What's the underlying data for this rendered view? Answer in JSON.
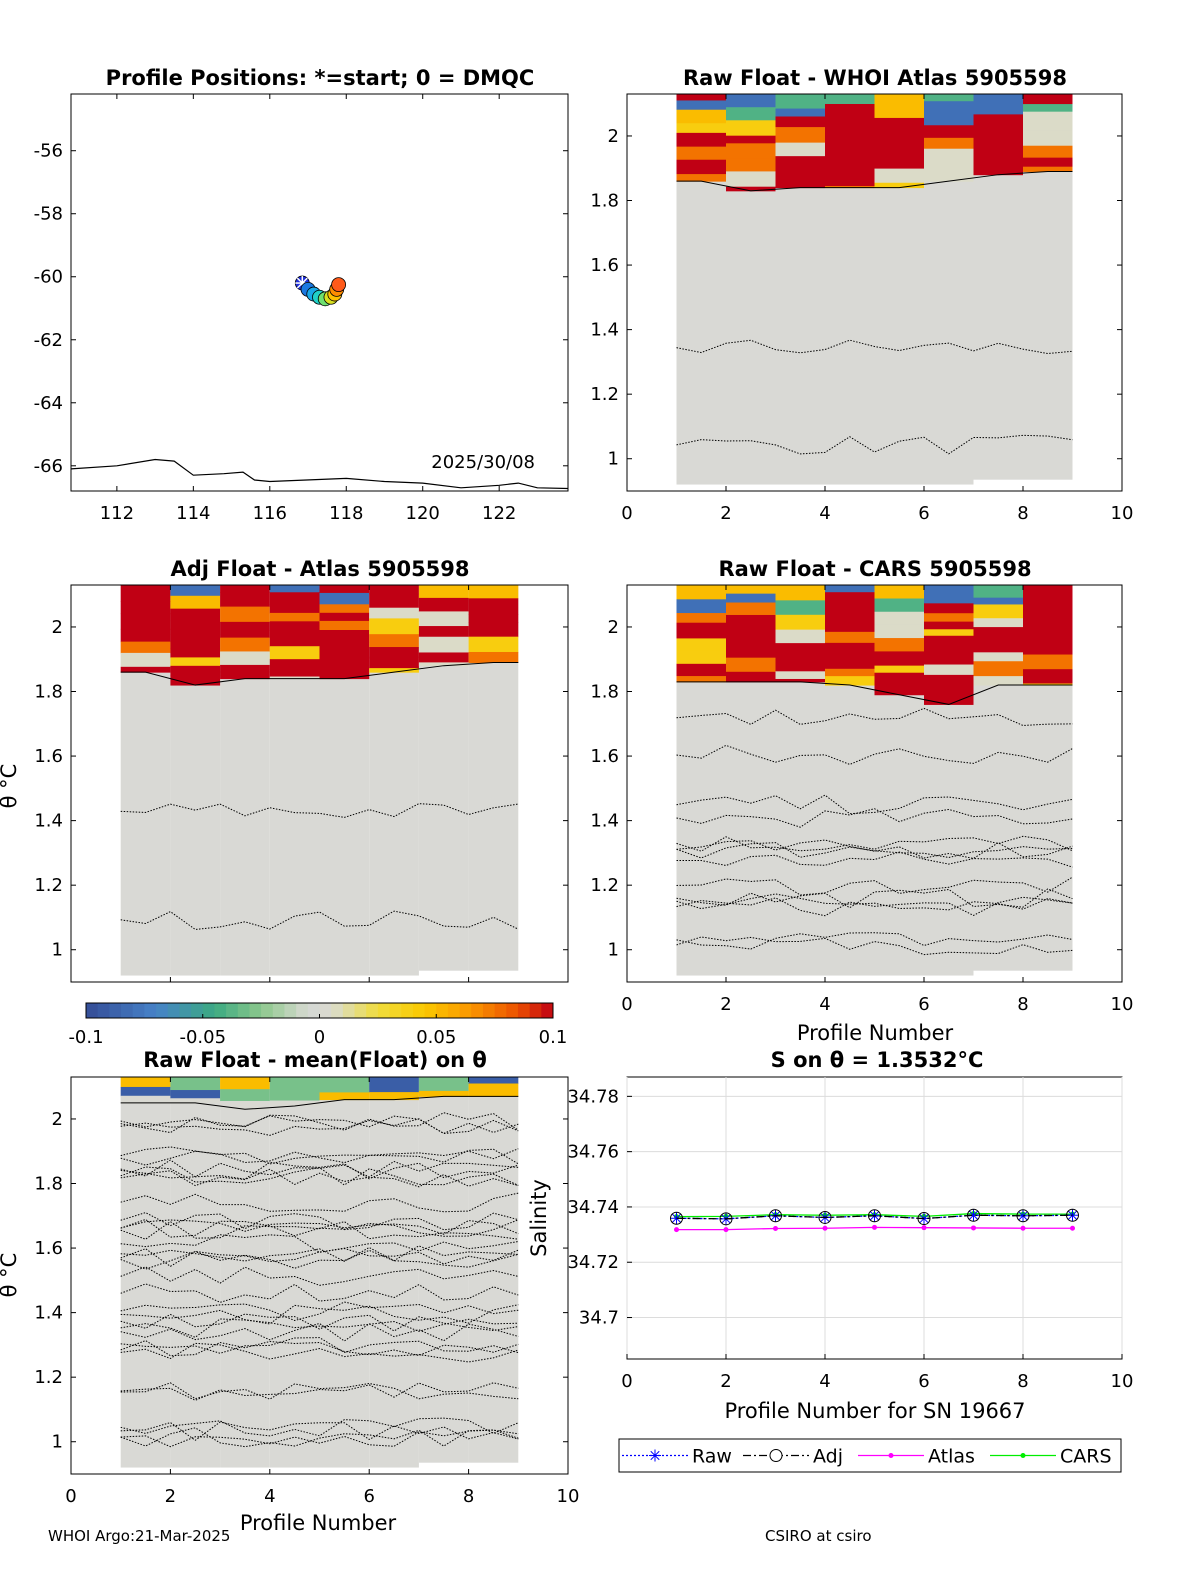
{
  "footer": {
    "left": "WHOI Argo:21-Mar-2025",
    "right": "CSIRO at csiro"
  },
  "colorbar": {
    "min": -0.1,
    "max": 0.1,
    "ticks": [
      "-0.1",
      "-0.05",
      "0",
      "0.05",
      "0.1"
    ]
  },
  "chart_data": [
    {
      "id": "positions",
      "type": "scatter",
      "title": "Profile Positions: *=start; 0 = DMQC",
      "annotation": "2025/30/08",
      "xlim": [
        110.8,
        123.8
      ],
      "ylim": [
        -66.8,
        -54.2
      ],
      "xticks": [
        "112",
        "114",
        "116",
        "118",
        "120",
        "122"
      ],
      "yticks": [
        "-56",
        "-58",
        "-60",
        "-62",
        "-64",
        "-66"
      ],
      "points": [
        {
          "lon": 116.85,
          "lat": -60.2,
          "color": "#1f2fd8",
          "marker": "star"
        },
        {
          "lon": 117.0,
          "lat": -60.4,
          "color": "#1a78e0"
        },
        {
          "lon": 117.15,
          "lat": -60.55,
          "color": "#18a8e8"
        },
        {
          "lon": 117.3,
          "lat": -60.65,
          "color": "#20d0c8"
        },
        {
          "lon": 117.45,
          "lat": -60.7,
          "color": "#6fe070"
        },
        {
          "lon": 117.6,
          "lat": -60.65,
          "color": "#d8e020"
        },
        {
          "lon": 117.7,
          "lat": -60.55,
          "color": "#ffc000"
        },
        {
          "lon": 117.75,
          "lat": -60.4,
          "color": "#ff8c00"
        },
        {
          "lon": 117.8,
          "lat": -60.25,
          "color": "#ff5a1a"
        }
      ],
      "coastline": [
        [
          110.8,
          -66.1
        ],
        [
          112,
          -66
        ],
        [
          113,
          -65.8
        ],
        [
          113.5,
          -65.85
        ],
        [
          114,
          -66.3
        ],
        [
          114.8,
          -66.25
        ],
        [
          115.3,
          -66.2
        ],
        [
          115.6,
          -66.45
        ],
        [
          116,
          -66.5
        ],
        [
          118,
          -66.4
        ],
        [
          119,
          -66.5
        ],
        [
          120,
          -66.55
        ],
        [
          121,
          -66.7
        ],
        [
          122,
          -66.62
        ],
        [
          122.5,
          -66.55
        ],
        [
          123,
          -66.7
        ],
        [
          123.8,
          -66.72
        ]
      ]
    },
    {
      "id": "raw-atlas",
      "type": "heatmap",
      "title": "Raw Float - WHOI Atlas  5905598",
      "xlim": [
        0,
        10
      ],
      "ylim": [
        0.9,
        2.13
      ],
      "xticks": [
        "0",
        "2",
        "4",
        "6",
        "8",
        "10"
      ],
      "yticks": [
        "1",
        "1.2",
        "1.4",
        "1.6",
        "1.8",
        "2"
      ],
      "xlabel": "",
      "ylabel": ""
    },
    {
      "id": "adj-atlas",
      "type": "heatmap",
      "title": "Adj Float - Atlas  5905598",
      "xlim": [
        0,
        10
      ],
      "ylim": [
        0.9,
        2.13
      ],
      "yticks": [
        "1",
        "1.2",
        "1.4",
        "1.6",
        "1.8",
        "2"
      ],
      "xlabel": "",
      "ylabel": "θ °C"
    },
    {
      "id": "raw-cars",
      "type": "heatmap",
      "title": "Raw Float - CARS  5905598",
      "xlim": [
        0,
        10
      ],
      "ylim": [
        0.9,
        2.13
      ],
      "xticks": [
        "0",
        "2",
        "4",
        "6",
        "8",
        "10"
      ],
      "yticks": [
        "1",
        "1.2",
        "1.4",
        "1.6",
        "1.8",
        "2"
      ],
      "xlabel": "Profile Number",
      "ylabel": ""
    },
    {
      "id": "raw-mean",
      "type": "heatmap",
      "title": "Raw Float - mean(Float) on θ",
      "xlim": [
        0,
        10
      ],
      "ylim": [
        0.9,
        2.13
      ],
      "xticks": [
        "0",
        "2",
        "4",
        "6",
        "8",
        "10"
      ],
      "yticks": [
        "1",
        "1.2",
        "1.4",
        "1.6",
        "1.8",
        "2"
      ],
      "xlabel": "Profile Number",
      "ylabel": "θ °C"
    },
    {
      "id": "salinity",
      "type": "line",
      "title": "S on θ = 1.3532°C",
      "xlim": [
        0,
        10
      ],
      "ylim": [
        34.685,
        34.787
      ],
      "xticks": [
        "0",
        "2",
        "4",
        "6",
        "8",
        "10"
      ],
      "yticks": [
        "34.7",
        "34.72",
        "34.74",
        "34.76",
        "34.78"
      ],
      "xlabel": "Profile Number for SN 19667",
      "ylabel": "Salinity",
      "grid": true,
      "legend": "below",
      "x": [
        1,
        2,
        3,
        4,
        5,
        6,
        7,
        8,
        9
      ],
      "series": [
        {
          "name": "Raw",
          "color": "#0000ff",
          "values": [
            34.7359,
            34.7357,
            34.7368,
            34.7362,
            34.7368,
            34.7358,
            34.737,
            34.7368,
            34.737
          ]
        },
        {
          "name": "Adj",
          "color": "#000000",
          "values": [
            34.7359,
            34.7357,
            34.7368,
            34.7362,
            34.7368,
            34.7358,
            34.737,
            34.7368,
            34.737
          ]
        },
        {
          "name": "Atlas",
          "color": "#ff00ff",
          "values": [
            34.7318,
            34.7318,
            34.7322,
            34.7323,
            34.7326,
            34.7325,
            34.7324,
            34.7323,
            34.7323
          ]
        },
        {
          "name": "CARS",
          "color": "#00ee00",
          "values": [
            34.7365,
            34.7366,
            34.7372,
            34.737,
            34.7372,
            34.7366,
            34.7376,
            34.7374,
            34.7374
          ]
        }
      ]
    }
  ]
}
